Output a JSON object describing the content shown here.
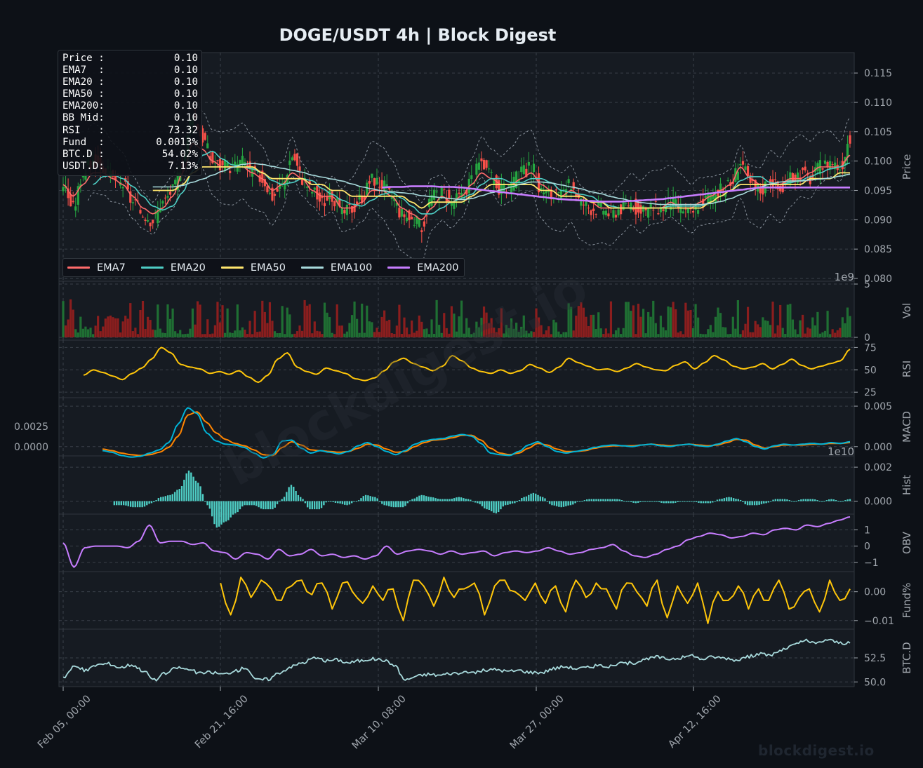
{
  "title": "DOGE/USDT  4h  |  Block Digest",
  "watermark": "blockdigest.io",
  "colors": {
    "background": "#0d1117",
    "panel": "#161b22",
    "grid": "#3a4049",
    "axis_text": "#a0a6ad",
    "candle_up": "#26a641",
    "candle_down": "#f85149",
    "ema7": "#ff6b6b",
    "ema20": "#4ecdc4",
    "ema50": "#ffe66d",
    "ema100": "#a8dadc",
    "ema200": "#c77dff",
    "bollinger": "#8b949e",
    "rsi": "#ffc60a",
    "macd": "#00b4d8",
    "signal": "#ff8500",
    "hist": "#4ecdc4",
    "obv": "#c77dff",
    "funding": "#ffc60a",
    "btcd": "#a8dadc"
  },
  "info_box": [
    {
      "label": "Price :",
      "value": "0.10"
    },
    {
      "label": "EMA7  :",
      "value": "0.10"
    },
    {
      "label": "EMA20 :",
      "value": "0.10"
    },
    {
      "label": "EMA50 :",
      "value": "0.10"
    },
    {
      "label": "EMA200:",
      "value": "0.10"
    },
    {
      "label": "BB Mid:",
      "value": "0.10"
    },
    {
      "label": "RSI   :",
      "value": "73.32"
    },
    {
      "label": "Fund  :",
      "value": "0.0013%"
    },
    {
      "label": "BTC.D :",
      "value": "54.02%"
    },
    {
      "label": "USDT.D:",
      "value": "7.13%"
    }
  ],
  "legend": [
    {
      "name": "EMA7",
      "color": "#ff6b6b"
    },
    {
      "name": "EMA20",
      "color": "#4ecdc4"
    },
    {
      "name": "EMA50",
      "color": "#ffe66d"
    },
    {
      "name": "EMA100",
      "color": "#a8dadc"
    },
    {
      "name": "EMA200",
      "color": "#c77dff"
    }
  ],
  "chart_data": {
    "type": "line",
    "x_ticks": [
      "Feb 05, 00:00",
      "Feb 21, 16:00",
      "Mar 10, 08:00",
      "Mar 27, 00:00",
      "Apr 12, 16:00"
    ],
    "panels": [
      {
        "id": "price",
        "ylabel": "Price",
        "kind": "candles",
        "ylim": [
          0.08,
          0.118
        ],
        "yticks": [
          "0.080",
          "0.085",
          "0.090",
          "0.095",
          "0.100",
          "0.105",
          "0.110",
          "0.115"
        ],
        "ytick_values": [
          0.08,
          0.085,
          0.09,
          0.095,
          0.1,
          0.105,
          0.11,
          0.115
        ],
        "close_approx": [
          0.096,
          0.092,
          0.098,
          0.1,
          0.099,
          0.097,
          0.096,
          0.093,
          0.091,
          0.09,
          0.093,
          0.095,
          0.1,
          0.108,
          0.104,
          0.1,
          0.099,
          0.099,
          0.1,
          0.098,
          0.097,
          0.094,
          0.096,
          0.101,
          0.097,
          0.095,
          0.093,
          0.094,
          0.091,
          0.092,
          0.094,
          0.097,
          0.096,
          0.094,
          0.091,
          0.09,
          0.089,
          0.094,
          0.095,
          0.093,
          0.094,
          0.097,
          0.1,
          0.097,
          0.095,
          0.096,
          0.098,
          0.099,
          0.095,
          0.094,
          0.094,
          0.096,
          0.093,
          0.092,
          0.092,
          0.091,
          0.092,
          0.093,
          0.091,
          0.092,
          0.092,
          0.093,
          0.092,
          0.091,
          0.093,
          0.094,
          0.095,
          0.096,
          0.1,
          0.096,
          0.095,
          0.097,
          0.095,
          0.097,
          0.098,
          0.097,
          0.099,
          0.1,
          0.099,
          0.104
        ],
        "ema7_approx": [
          0.096,
          0.094,
          0.096,
          0.098,
          0.098,
          0.097,
          0.096,
          0.094,
          0.092,
          0.091,
          0.092,
          0.094,
          0.098,
          0.103,
          0.102,
          0.1,
          0.099,
          0.099,
          0.099,
          0.098,
          0.097,
          0.095,
          0.096,
          0.098,
          0.097,
          0.095,
          0.094,
          0.094,
          0.092,
          0.092,
          0.093,
          0.095,
          0.095,
          0.094,
          0.092,
          0.091,
          0.09,
          0.092,
          0.094,
          0.093,
          0.094,
          0.096,
          0.098,
          0.097,
          0.096,
          0.096,
          0.097,
          0.098,
          0.096,
          0.095,
          0.094,
          0.095,
          0.094,
          0.093,
          0.092,
          0.092,
          0.092,
          0.092,
          0.092,
          0.092,
          0.092,
          0.093,
          0.092,
          0.092,
          0.093,
          0.094,
          0.095,
          0.096,
          0.099,
          0.097,
          0.096,
          0.096,
          0.096,
          0.097,
          0.097,
          0.098,
          0.099,
          0.099,
          0.099,
          0.101
        ],
        "ema50_approx": [
          null,
          null,
          null,
          null,
          null,
          null,
          null,
          null,
          null,
          0.095,
          0.095,
          0.095,
          0.096,
          0.098,
          0.099,
          0.099,
          0.099,
          0.099,
          0.099,
          0.099,
          0.098,
          0.097,
          0.097,
          0.097,
          0.097,
          0.096,
          0.096,
          0.095,
          0.095,
          0.094,
          0.094,
          0.094,
          0.094,
          0.094,
          0.094,
          0.093,
          0.092,
          0.093,
          0.093,
          0.093,
          0.093,
          0.094,
          0.095,
          0.096,
          0.096,
          0.096,
          0.096,
          0.096,
          0.095,
          0.095,
          0.094,
          0.094,
          0.094,
          0.093,
          0.093,
          0.092,
          0.092,
          0.092,
          0.092,
          0.092,
          0.092,
          0.092,
          0.092,
          0.092,
          0.092,
          0.093,
          0.094,
          0.095,
          0.096,
          0.096,
          0.096,
          0.096,
          0.096,
          0.096,
          0.096,
          0.097,
          0.097,
          0.097,
          0.098,
          0.098
        ],
        "ema200_approx": [
          null,
          null,
          null,
          null,
          null,
          null,
          null,
          null,
          null,
          null,
          null,
          null,
          null,
          null,
          null,
          null,
          null,
          null,
          null,
          null,
          null,
          null,
          null,
          null,
          null,
          null,
          null,
          null,
          null,
          null,
          null,
          null,
          0.0955,
          0.0956,
          0.0956,
          0.0957,
          0.0957,
          0.0957,
          0.0956,
          0.0956,
          0.0955,
          0.0953,
          0.0951,
          0.0949,
          0.0947,
          0.0945,
          0.0943,
          0.0941,
          0.0939,
          0.0937,
          0.0935,
          0.0934,
          0.0933,
          0.0932,
          0.0931,
          0.0931,
          0.0931,
          0.0932,
          0.0933,
          0.0934,
          0.0935,
          0.0937,
          0.0939,
          0.0941,
          0.0943,
          0.0945,
          0.0947,
          0.0949,
          0.0951,
          0.0953,
          0.0955,
          0.0955,
          0.0955,
          0.0955,
          0.0955,
          0.0955,
          0.0955,
          0.0955,
          0.0955,
          0.0955
        ]
      },
      {
        "id": "volume",
        "ylabel": "Vol",
        "kind": "bars",
        "ylim": [
          0,
          5
        ],
        "yticks": [
          "0",
          "5"
        ],
        "ytick_values": [
          0,
          5
        ],
        "offset_label": "1e9"
      },
      {
        "id": "rsi",
        "ylabel": "RSI",
        "kind": "line",
        "ylim": [
          22,
          80
        ],
        "yticks": [
          "25",
          "50",
          "75"
        ],
        "ytick_values": [
          25,
          50,
          75
        ],
        "values_approx": [
          44,
          50,
          47,
          43,
          39,
          46,
          52,
          62,
          75,
          69,
          56,
          53,
          51,
          46,
          48,
          45,
          49,
          42,
          36,
          44,
          62,
          69,
          53,
          48,
          45,
          52,
          49,
          46,
          40,
          38,
          41,
          49,
          59,
          63,
          57,
          53,
          49,
          54,
          66,
          60,
          52,
          48,
          46,
          50,
          46,
          49,
          56,
          52,
          47,
          53,
          63,
          58,
          54,
          50,
          51,
          48,
          52,
          57,
          53,
          50,
          49,
          55,
          59,
          51,
          58,
          66,
          61,
          54,
          51,
          53,
          57,
          51,
          56,
          62,
          55,
          51,
          54,
          57,
          60,
          73
        ]
      },
      {
        "id": "macd",
        "ylabel": "MACD",
        "kind": "two-lines",
        "ylim": [
          -0.0008,
          0.0057
        ],
        "yticks": [
          "0.000",
          "0.005"
        ],
        "ytick_values": [
          0.0,
          0.005
        ],
        "left_yticks": [
          "0.0000",
          "0.0025"
        ],
        "left_ytick_values": [
          0.0,
          0.0025
        ],
        "macd_approx": [
          -0.0005,
          -0.0007,
          -0.0011,
          -0.0013,
          -0.0012,
          -0.0008,
          -0.0004,
          0.0005,
          0.0028,
          0.0048,
          0.0041,
          0.0017,
          0.0007,
          0.0003,
          0.0002,
          -0.0001,
          -0.0008,
          -0.0014,
          -0.001,
          0.0007,
          0.0008,
          -0.0002,
          -0.0008,
          -0.0005,
          -0.0007,
          -0.0009,
          -0.0006,
          0.0001,
          0.0005,
          0.0,
          -0.0006,
          -0.001,
          -0.0005,
          0.0003,
          0.0007,
          0.0009,
          0.001,
          0.0013,
          0.0015,
          0.0013,
          0.0004,
          -0.0008,
          -0.001,
          -0.0011,
          -0.0006,
          0.0002,
          0.0006,
          0.0,
          -0.0006,
          -0.0008,
          -0.0006,
          -0.0004,
          -0.0001,
          0.0001,
          0.0002,
          0.0001,
          0.0,
          0.0002,
          0.0003,
          0.0001,
          0.0,
          0.0002,
          0.0003,
          0.0001,
          0.0,
          0.0003,
          0.0007,
          0.001,
          0.0006,
          0.0,
          -0.0003,
          0.0001,
          0.0003,
          0.0002,
          0.0003,
          0.0004,
          0.0003,
          0.0005,
          0.0004,
          0.0006
        ],
        "signal_approx": [
          -0.0003,
          -0.0005,
          -0.0008,
          -0.001,
          -0.0011,
          -0.001,
          -0.0007,
          -0.0001,
          0.0013,
          0.0039,
          0.0043,
          0.003,
          0.0017,
          0.0009,
          0.0004,
          0.0001,
          -0.0004,
          -0.001,
          -0.0011,
          -0.0001,
          0.0006,
          0.0002,
          -0.0004,
          -0.0005,
          -0.0006,
          -0.0007,
          -0.0006,
          -0.0002,
          0.0003,
          0.0002,
          -0.0003,
          -0.0007,
          -0.0006,
          0.0,
          0.0005,
          0.0008,
          0.0009,
          0.0011,
          0.0014,
          0.0014,
          0.0008,
          -0.0002,
          -0.0008,
          -0.001,
          -0.0008,
          -0.0002,
          0.0004,
          0.0002,
          -0.0003,
          -0.0006,
          -0.0006,
          -0.0005,
          -0.0002,
          0.0,
          0.0001,
          0.0001,
          0.0001,
          0.0002,
          0.0003,
          0.0002,
          0.0001,
          0.0002,
          0.0003,
          0.0002,
          0.0001,
          0.0002,
          0.0005,
          0.0009,
          0.0008,
          0.0002,
          -0.0002,
          0.0,
          0.0002,
          0.0002,
          0.0002,
          0.0003,
          0.0003,
          0.0004,
          0.0004,
          0.0005
        ]
      },
      {
        "id": "hist",
        "ylabel": "Hist",
        "kind": "bars",
        "ylim": [
          -0.0006,
          0.0025
        ],
        "yticks": [
          "0.000",
          "0.002"
        ],
        "ytick_values": [
          0.0,
          0.002
        ],
        "offset_label": "1e10"
      },
      {
        "id": "obv",
        "ylabel": "OBV",
        "kind": "line",
        "ylim": [
          -1.4,
          1.8
        ],
        "yticks": [
          "−1",
          "0",
          "1"
        ],
        "ytick_values": [
          -1,
          0,
          1
        ],
        "values_approx": [
          0.2,
          -1.3,
          -0.1,
          0.0,
          0.0,
          0.0,
          -0.1,
          0.3,
          1.3,
          0.2,
          0.3,
          0.3,
          0.1,
          0.2,
          -0.3,
          -0.4,
          -0.8,
          -0.4,
          -0.5,
          -0.8,
          -0.2,
          -0.6,
          -0.5,
          -0.2,
          -0.6,
          -0.5,
          -0.7,
          -0.6,
          -0.8,
          -0.6,
          0.0,
          -0.5,
          -0.3,
          -0.2,
          -0.3,
          -0.5,
          -0.3,
          -0.5,
          -0.4,
          -0.3,
          -0.6,
          -0.4,
          -0.3,
          -0.4,
          -0.3,
          -0.1,
          -0.3,
          -0.5,
          -0.4,
          -0.2,
          -0.1,
          0.1,
          -0.3,
          -0.6,
          -0.7,
          -0.5,
          -0.2,
          0.0,
          0.4,
          0.6,
          0.8,
          0.7,
          0.5,
          0.6,
          0.8,
          0.7,
          1.0,
          1.1,
          1.0,
          1.3,
          1.2,
          1.4,
          1.6,
          1.8
        ]
      },
      {
        "id": "funding",
        "ylabel": "Fund%",
        "kind": "line",
        "ylim": [
          -0.012,
          0.006
        ],
        "yticks": [
          "−0.01",
          "0.00"
        ],
        "ytick_values": [
          -0.01,
          0.0
        ],
        "values_approx": [
          0.003,
          -0.008,
          0.005,
          -0.002,
          0.004,
          0.001,
          -0.003,
          0.002,
          0.004,
          -0.001,
          0.003,
          -0.006,
          0.003,
          0.0,
          -0.004,
          0.002,
          -0.003,
          0.001,
          -0.01,
          0.004,
          0.002,
          -0.005,
          0.005,
          -0.002,
          0.001,
          0.003,
          -0.008,
          0.002,
          0.004,
          0.0,
          -0.003,
          0.003,
          -0.004,
          0.002,
          -0.007,
          0.004,
          -0.002,
          0.003,
          0.001,
          -0.006,
          0.003,
          0.0,
          -0.005,
          0.004,
          -0.009,
          0.002,
          -0.004,
          0.003,
          -0.011,
          0.0,
          -0.003,
          0.002,
          -0.006,
          0.001,
          -0.003,
          0.004,
          -0.006,
          -0.002,
          0.001,
          -0.007,
          0.004,
          -0.003,
          0.001
        ]
      },
      {
        "id": "btcd",
        "ylabel": "BTC.D",
        "kind": "line",
        "ylim": [
          49.8,
          55.2
        ],
        "yticks": [
          "50.0",
          "52.5"
        ],
        "ytick_values": [
          50.0,
          52.5
        ],
        "values_approx": [
          50.5,
          51.6,
          51.2,
          51.8,
          51.9,
          51.5,
          51.8,
          51.2,
          50.2,
          50.9,
          51.5,
          51.3,
          50.9,
          51.0,
          50.8,
          51.1,
          51.5,
          50.2,
          50.3,
          51.0,
          51.6,
          52.0,
          52.5,
          52.2,
          52.3,
          52.0,
          52.2,
          52.4,
          52.3,
          51.8,
          50.2,
          50.6,
          50.8,
          50.7,
          50.9,
          50.9,
          51.0,
          51.2,
          51.3,
          51.1,
          51.2,
          51.0,
          51.0,
          51.4,
          51.6,
          51.4,
          51.5,
          51.7,
          51.6,
          51.9,
          52.0,
          52.3,
          52.6,
          52.4,
          52.5,
          52.7,
          52.4,
          52.6,
          52.5,
          52.3,
          52.6,
          52.9,
          52.8,
          53.3,
          53.8,
          54.3,
          54.0,
          54.4,
          54.1,
          54.0
        ]
      }
    ]
  }
}
